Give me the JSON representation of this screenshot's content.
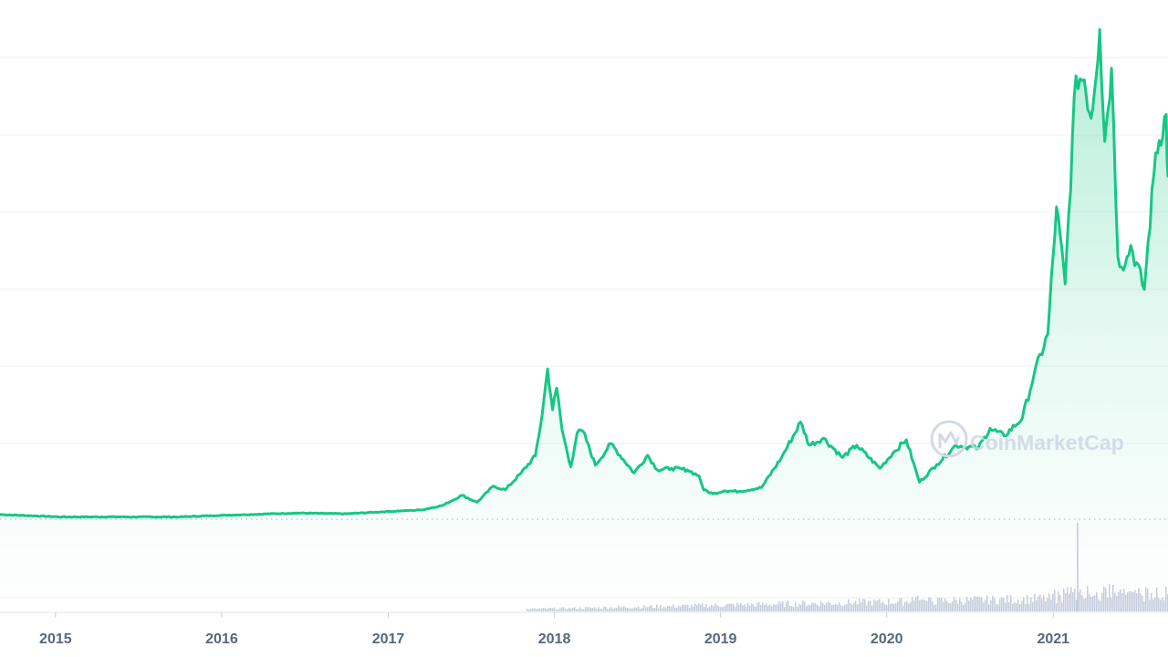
{
  "chart_data": {
    "type": "area",
    "title": "",
    "xlabel": "",
    "ylabel": "",
    "watermark": "CoinMarketCap",
    "x_ticks": [
      "2015",
      "2016",
      "2017",
      "2018",
      "2019",
      "2020",
      "2021"
    ],
    "x_range": [
      "2014-09-01",
      "2021-09-10"
    ],
    "grid": true,
    "line_color": "#16c784",
    "fill_color": "#16c784",
    "volume_color": "#c2c8d9",
    "series": [
      {
        "role": "price",
        "points": [
          [
            "2014-09-01",
            0.6
          ],
          [
            "2015-01-15",
            0.3
          ],
          [
            "2015-06-01",
            0.3
          ],
          [
            "2015-10-01",
            0.3
          ],
          [
            "2016-01-01",
            0.5
          ],
          [
            "2016-06-15",
            0.8
          ],
          [
            "2016-10-01",
            0.7
          ],
          [
            "2017-01-01",
            1.0
          ],
          [
            "2017-03-15",
            1.2
          ],
          [
            "2017-05-01",
            1.8
          ],
          [
            "2017-06-12",
            3.1
          ],
          [
            "2017-07-15",
            2.2
          ],
          [
            "2017-08-20",
            4.3
          ],
          [
            "2017-09-15",
            3.8
          ],
          [
            "2017-10-20",
            6.0
          ],
          [
            "2017-11-20",
            8.2
          ],
          [
            "2017-12-05",
            13.5
          ],
          [
            "2017-12-17",
            19.5
          ],
          [
            "2017-12-28",
            14.2
          ],
          [
            "2018-01-06",
            17.0
          ],
          [
            "2018-01-18",
            11.5
          ],
          [
            "2018-02-06",
            6.8
          ],
          [
            "2018-02-20",
            11.2
          ],
          [
            "2018-03-05",
            11.4
          ],
          [
            "2018-04-01",
            7.0
          ],
          [
            "2018-05-05",
            9.8
          ],
          [
            "2018-06-25",
            6.0
          ],
          [
            "2018-07-25",
            8.3
          ],
          [
            "2018-08-15",
            6.4
          ],
          [
            "2018-09-15",
            6.6
          ],
          [
            "2018-10-20",
            6.4
          ],
          [
            "2018-11-15",
            5.6
          ],
          [
            "2018-11-25",
            3.8
          ],
          [
            "2018-12-15",
            3.3
          ],
          [
            "2019-01-10",
            3.7
          ],
          [
            "2019-02-10",
            3.6
          ],
          [
            "2019-04-01",
            4.1
          ],
          [
            "2019-05-15",
            8.0
          ],
          [
            "2019-06-26",
            12.6
          ],
          [
            "2019-07-15",
            9.6
          ],
          [
            "2019-08-15",
            10.5
          ],
          [
            "2019-09-26",
            8.0
          ],
          [
            "2019-10-27",
            9.6
          ],
          [
            "2019-12-17",
            6.6
          ],
          [
            "2020-01-15",
            8.6
          ],
          [
            "2020-02-13",
            10.3
          ],
          [
            "2020-03-13",
            4.8
          ],
          [
            "2020-04-20",
            7.1
          ],
          [
            "2020-06-01",
            9.6
          ],
          [
            "2020-07-20",
            9.2
          ],
          [
            "2020-08-15",
            11.8
          ],
          [
            "2020-09-15",
            10.8
          ],
          [
            "2020-10-25",
            13.1
          ],
          [
            "2020-11-20",
            18.8
          ],
          [
            "2020-12-20",
            24.0
          ],
          [
            "2021-01-08",
            40.5
          ],
          [
            "2021-01-27",
            30.5
          ],
          [
            "2021-02-20",
            57.5
          ],
          [
            "2021-03-10",
            57.0
          ],
          [
            "2021-03-25",
            52.0
          ],
          [
            "2021-04-13",
            63.5
          ],
          [
            "2021-04-24",
            49.0
          ],
          [
            "2021-05-09",
            58.5
          ],
          [
            "2021-05-23",
            34.0
          ],
          [
            "2021-06-08",
            33.0
          ],
          [
            "2021-06-20",
            35.5
          ],
          [
            "2021-07-20",
            29.8
          ],
          [
            "2021-08-14",
            47.5
          ],
          [
            "2021-09-06",
            52.5
          ],
          [
            "2021-09-08",
            46.5
          ],
          [
            "2021-09-10",
            44.5
          ]
        ]
      }
    ]
  }
}
